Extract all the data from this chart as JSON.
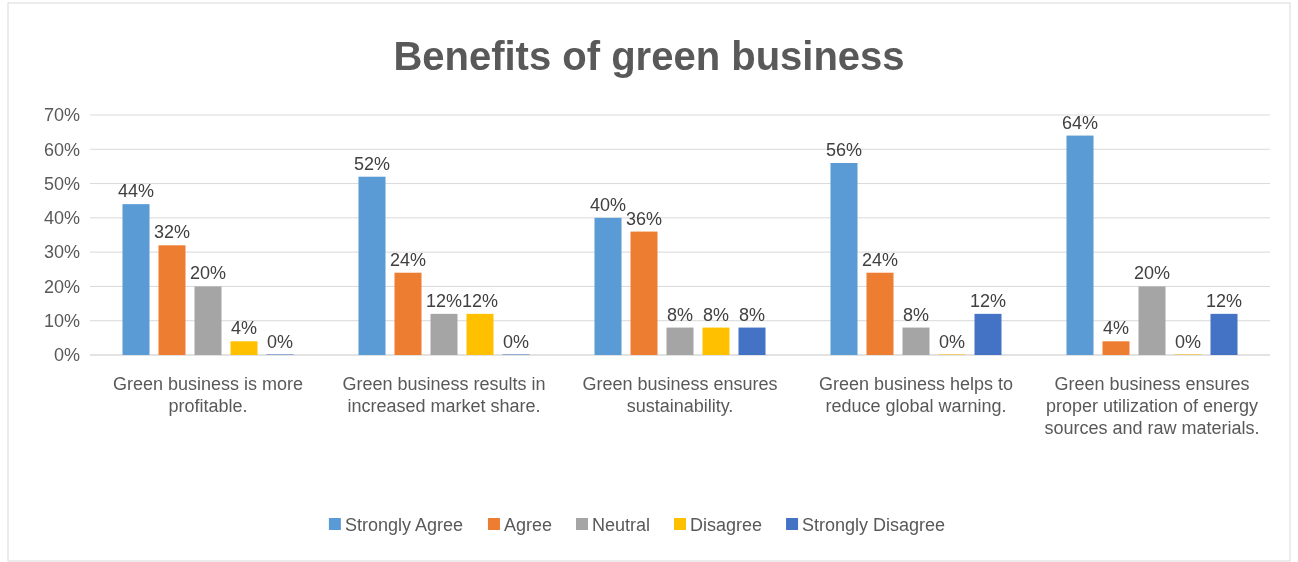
{
  "chart_data": {
    "type": "bar",
    "title": "Benefits of green business",
    "categories": [
      "Green business is more profitable.",
      "Green business results in increased market share.",
      "Green business ensures sustainability.",
      "Green business helps to reduce global warning.",
      "Green business ensures proper utilization of energy sources and raw materials."
    ],
    "series": [
      {
        "name": "Strongly Agree",
        "color": "#5b9bd5",
        "values": [
          44,
          52,
          40,
          56,
          64
        ],
        "value_labels": [
          "44%",
          "52%",
          "40%",
          "56%",
          "64%"
        ]
      },
      {
        "name": "Agree",
        "color": "#ed7d31",
        "values": [
          32,
          24,
          36,
          24,
          4
        ],
        "value_labels": [
          "32%",
          "24%",
          "36%",
          "24%",
          "4%"
        ]
      },
      {
        "name": "Neutral",
        "color": "#a5a5a5",
        "values": [
          20,
          12,
          8,
          8,
          20
        ],
        "value_labels": [
          "20%",
          "12%",
          "8%",
          "8%",
          "20%"
        ]
      },
      {
        "name": "Disagree",
        "color": "#ffc000",
        "values": [
          4,
          12,
          8,
          0,
          0
        ],
        "value_labels": [
          "4%",
          "12%",
          "8%",
          "0%",
          "0%"
        ]
      },
      {
        "name": "Strongly Disagree",
        "color": "#4472c4",
        "values": [
          0,
          0,
          8,
          12,
          12
        ],
        "value_labels": [
          "0%",
          "0%",
          "8%",
          "12%",
          "12%"
        ]
      }
    ],
    "ylim": [
      0,
      70
    ],
    "yticks": [
      {
        "value": 0,
        "label": "0%"
      },
      {
        "value": 10,
        "label": "10%"
      },
      {
        "value": 20,
        "label": "20%"
      },
      {
        "value": 30,
        "label": "30%"
      },
      {
        "value": 40,
        "label": "40%"
      },
      {
        "value": 50,
        "label": "50%"
      },
      {
        "value": 60,
        "label": "60%"
      },
      {
        "value": 70,
        "label": "70%"
      }
    ],
    "grid": "y",
    "legend": "bottom"
  }
}
